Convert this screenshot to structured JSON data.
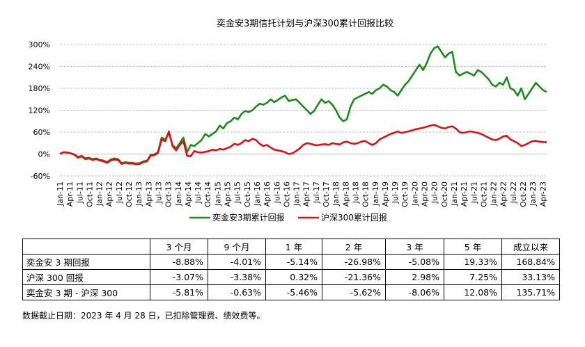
{
  "chart_data": {
    "type": "line",
    "title": "奕金安3期信托计划与沪深300累计回报比较",
    "y_axis": {
      "min": -60,
      "max": 300,
      "step": 60,
      "tick_labels": [
        "-60%",
        "0%",
        "60%",
        "120%",
        "180%",
        "240%",
        "300%"
      ]
    },
    "grid": "horizontal-dashed",
    "legend_position": "bottom",
    "x_tick_labels": [
      "Jan-11",
      "Apr-11",
      "Jul-11",
      "Oct-11",
      "Jan-12",
      "Apr-12",
      "Jul-12",
      "Oct-12",
      "Jan-13",
      "Apr-13",
      "Jul-13",
      "Oct-13",
      "Jan-14",
      "Apr-14",
      "Jul-14",
      "Oct-14",
      "Jan-15",
      "Apr-15",
      "Jul-15",
      "Oct-15",
      "Jan-16",
      "Apr-16",
      "Jul-16",
      "Oct-16",
      "Jan-17",
      "Apr-17",
      "Jul-17",
      "Oct-17",
      "Jan-18",
      "Apr-18",
      "Jul-18",
      "Oct-18",
      "Jan-19",
      "Apr-19",
      "Jul-19",
      "Oct-19",
      "Jan-20",
      "Apr-20",
      "Jul-20",
      "Oct-20",
      "Jan-21",
      "Apr-21",
      "Jul-21",
      "Oct-21",
      "Jan-22",
      "Apr-22",
      "Jul-22",
      "Oct-22",
      "Jan-23",
      "Apr-23"
    ],
    "series": [
      {
        "name": "奕金安3期累计回报",
        "color": "#1a8a1a",
        "points": [
          [
            0,
            0
          ],
          [
            1,
            5
          ],
          [
            2,
            4
          ],
          [
            3,
            2
          ],
          [
            4,
            -1
          ],
          [
            5,
            -8
          ],
          [
            6,
            -5
          ],
          [
            7,
            -12
          ],
          [
            8,
            -10
          ],
          [
            9,
            -14
          ],
          [
            10,
            -12
          ],
          [
            11,
            -16
          ],
          [
            12,
            -18
          ],
          [
            13,
            -22
          ],
          [
            14,
            -15
          ],
          [
            15,
            -12
          ],
          [
            16,
            -14
          ],
          [
            17,
            -25
          ],
          [
            18,
            -22
          ],
          [
            19,
            -24
          ],
          [
            20,
            -24
          ],
          [
            21,
            -26
          ],
          [
            22,
            -25
          ],
          [
            23,
            -20
          ],
          [
            24,
            -18
          ],
          [
            25,
            -2
          ],
          [
            26,
            -1
          ],
          [
            27,
            5
          ],
          [
            28,
            45
          ],
          [
            29,
            40
          ],
          [
            30,
            58
          ],
          [
            31,
            25
          ],
          [
            32,
            15
          ],
          [
            33,
            30
          ],
          [
            34,
            45
          ],
          [
            35,
            5
          ],
          [
            36,
            25
          ],
          [
            37,
            22
          ],
          [
            38,
            30
          ],
          [
            39,
            38
          ],
          [
            40,
            55
          ],
          [
            41,
            48
          ],
          [
            42,
            55
          ],
          [
            43,
            62
          ],
          [
            44,
            78
          ],
          [
            45,
            70
          ],
          [
            46,
            85
          ],
          [
            47,
            90
          ],
          [
            48,
            100
          ],
          [
            49,
            95
          ],
          [
            50,
            110
          ],
          [
            51,
            118
          ],
          [
            52,
            115
          ],
          [
            53,
            120
          ],
          [
            54,
            130
          ],
          [
            55,
            138
          ],
          [
            56,
            135
          ],
          [
            57,
            140
          ],
          [
            58,
            150
          ],
          [
            59,
            142
          ],
          [
            60,
            148
          ],
          [
            61,
            155
          ],
          [
            62,
            160
          ],
          [
            63,
            145
          ],
          [
            64,
            148
          ],
          [
            65,
            150
          ],
          [
            66,
            140
          ],
          [
            67,
            130
          ],
          [
            68,
            120
          ],
          [
            69,
            110
          ],
          [
            70,
            118
          ],
          [
            71,
            135
          ],
          [
            72,
            150
          ],
          [
            73,
            140
          ],
          [
            74,
            145
          ],
          [
            75,
            135
          ],
          [
            76,
            120
          ],
          [
            77,
            100
          ],
          [
            78,
            90
          ],
          [
            79,
            95
          ],
          [
            80,
            130
          ],
          [
            81,
            150
          ],
          [
            82,
            155
          ],
          [
            83,
            160
          ],
          [
            84,
            165
          ],
          [
            85,
            170
          ],
          [
            86,
            165
          ],
          [
            87,
            175
          ],
          [
            88,
            180
          ],
          [
            89,
            190
          ],
          [
            90,
            185
          ],
          [
            91,
            175
          ],
          [
            92,
            170
          ],
          [
            93,
            160
          ],
          [
            94,
            175
          ],
          [
            95,
            190
          ],
          [
            96,
            200
          ],
          [
            97,
            215
          ],
          [
            98,
            230
          ],
          [
            99,
            245
          ],
          [
            100,
            230
          ],
          [
            101,
            250
          ],
          [
            102,
            275
          ],
          [
            103,
            290
          ],
          [
            104,
            295
          ],
          [
            105,
            280
          ],
          [
            106,
            265
          ],
          [
            107,
            275
          ],
          [
            108,
            280
          ],
          [
            109,
            225
          ],
          [
            110,
            215
          ],
          [
            111,
            220
          ],
          [
            112,
            225
          ],
          [
            113,
            220
          ],
          [
            114,
            215
          ],
          [
            115,
            230
          ],
          [
            116,
            225
          ],
          [
            117,
            215
          ],
          [
            118,
            205
          ],
          [
            119,
            190
          ],
          [
            120,
            185
          ],
          [
            121,
            195
          ],
          [
            122,
            190
          ],
          [
            123,
            210
          ],
          [
            124,
            180
          ],
          [
            125,
            175
          ],
          [
            126,
            160
          ],
          [
            127,
            180
          ],
          [
            128,
            150
          ],
          [
            129,
            165
          ],
          [
            130,
            180
          ],
          [
            131,
            195
          ],
          [
            132,
            185
          ],
          [
            133,
            175
          ],
          [
            134,
            170
          ]
        ]
      },
      {
        "name": "沪深300累计回报",
        "color": "#e01010",
        "points": [
          [
            0,
            0
          ],
          [
            1,
            5
          ],
          [
            2,
            4
          ],
          [
            3,
            2
          ],
          [
            4,
            -2
          ],
          [
            5,
            -10
          ],
          [
            6,
            -6
          ],
          [
            7,
            -14
          ],
          [
            8,
            -12
          ],
          [
            9,
            -16
          ],
          [
            10,
            -14
          ],
          [
            11,
            -18
          ],
          [
            12,
            -20
          ],
          [
            13,
            -24
          ],
          [
            14,
            -18
          ],
          [
            15,
            -15
          ],
          [
            16,
            -16
          ],
          [
            17,
            -27
          ],
          [
            18,
            -24
          ],
          [
            19,
            -26
          ],
          [
            20,
            -26
          ],
          [
            21,
            -28
          ],
          [
            22,
            -27
          ],
          [
            23,
            -22
          ],
          [
            24,
            -20
          ],
          [
            25,
            -4
          ],
          [
            26,
            -3
          ],
          [
            27,
            3
          ],
          [
            28,
            40
          ],
          [
            29,
            35
          ],
          [
            30,
            62
          ],
          [
            31,
            22
          ],
          [
            32,
            10
          ],
          [
            33,
            25
          ],
          [
            34,
            35
          ],
          [
            35,
            -5
          ],
          [
            36,
            -6
          ],
          [
            37,
            8
          ],
          [
            38,
            5
          ],
          [
            39,
            4
          ],
          [
            40,
            6
          ],
          [
            41,
            8
          ],
          [
            42,
            12
          ],
          [
            43,
            10
          ],
          [
            44,
            14
          ],
          [
            45,
            12
          ],
          [
            46,
            16
          ],
          [
            47,
            20
          ],
          [
            48,
            28
          ],
          [
            49,
            25
          ],
          [
            50,
            30
          ],
          [
            51,
            38
          ],
          [
            52,
            35
          ],
          [
            53,
            42
          ],
          [
            54,
            38
          ],
          [
            55,
            28
          ],
          [
            56,
            22
          ],
          [
            57,
            25
          ],
          [
            58,
            18
          ],
          [
            59,
            12
          ],
          [
            60,
            10
          ],
          [
            61,
            8
          ],
          [
            62,
            5
          ],
          [
            63,
            0
          ],
          [
            64,
            2
          ],
          [
            65,
            8
          ],
          [
            66,
            15
          ],
          [
            67,
            25
          ],
          [
            68,
            30
          ],
          [
            69,
            28
          ],
          [
            70,
            25
          ],
          [
            71,
            24
          ],
          [
            72,
            26
          ],
          [
            73,
            27
          ],
          [
            74,
            25
          ],
          [
            75,
            30
          ],
          [
            76,
            28
          ],
          [
            77,
            26
          ],
          [
            78,
            32
          ],
          [
            79,
            34
          ],
          [
            80,
            30
          ],
          [
            81,
            28
          ],
          [
            82,
            30
          ],
          [
            83,
            34
          ],
          [
            84,
            36
          ],
          [
            85,
            30
          ],
          [
            86,
            25
          ],
          [
            87,
            30
          ],
          [
            88,
            40
          ],
          [
            89,
            45
          ],
          [
            90,
            50
          ],
          [
            91,
            55
          ],
          [
            92,
            58
          ],
          [
            93,
            62
          ],
          [
            94,
            58
          ],
          [
            95,
            60
          ],
          [
            96,
            62
          ],
          [
            97,
            65
          ],
          [
            98,
            68
          ],
          [
            99,
            70
          ],
          [
            100,
            72
          ],
          [
            101,
            75
          ],
          [
            102,
            78
          ],
          [
            103,
            80
          ],
          [
            104,
            76
          ],
          [
            105,
            72
          ],
          [
            106,
            70
          ],
          [
            107,
            74
          ],
          [
            108,
            76
          ],
          [
            109,
            70
          ],
          [
            110,
            60
          ],
          [
            111,
            58
          ],
          [
            112,
            60
          ],
          [
            113,
            62
          ],
          [
            114,
            60
          ],
          [
            115,
            58
          ],
          [
            116,
            55
          ],
          [
            117,
            50
          ],
          [
            118,
            45
          ],
          [
            119,
            40
          ],
          [
            120,
            38
          ],
          [
            121,
            42
          ],
          [
            122,
            48
          ],
          [
            123,
            50
          ],
          [
            124,
            40
          ],
          [
            125,
            35
          ],
          [
            126,
            30
          ],
          [
            127,
            22
          ],
          [
            128,
            25
          ],
          [
            129,
            30
          ],
          [
            130,
            35
          ],
          [
            131,
            36
          ],
          [
            132,
            34
          ],
          [
            133,
            33
          ],
          [
            134,
            32
          ]
        ]
      }
    ]
  },
  "table": {
    "headers": [
      "",
      "3 个月",
      "9 个月",
      "1 年",
      "2 年",
      "3 年",
      "5 年",
      "成立以来"
    ],
    "rows": [
      {
        "label": "奕金安 3 期回报",
        "values": [
          "-8.88%",
          "-4.01%",
          "-5.14%",
          "-26.98%",
          "-5.08%",
          "19.33%",
          "168.84%"
        ]
      },
      {
        "label": "沪深 300 回报",
        "values": [
          "-3.07%",
          "-3.38%",
          "0.32%",
          "-21.36%",
          "2.98%",
          "7.25%",
          "33.13%"
        ]
      },
      {
        "label": "奕金安 3 期 - 沪深 300",
        "values": [
          "-5.81%",
          "-0.63%",
          "-5.46%",
          "-5.62%",
          "-8.06%",
          "12.08%",
          "135.71%"
        ]
      }
    ]
  },
  "note": "数据截止日期：2023 年 4 月 28 日，已扣除管理费、绩效费等。"
}
